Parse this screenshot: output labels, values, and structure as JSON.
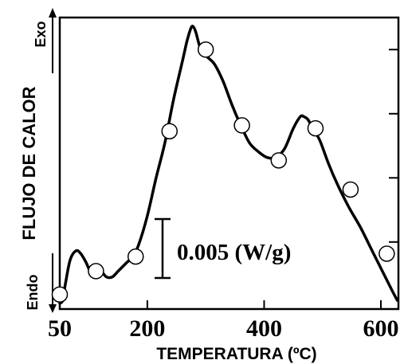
{
  "chart_data": {
    "type": "line",
    "xlabel": "TEMPERATURA (ºC)",
    "ylabel": "FLUJO DE CALOR",
    "y_arrow_top_label": "Exo",
    "y_arrow_bottom_label": "Endo",
    "x_ticks": [
      "50",
      "200",
      "400",
      "600"
    ],
    "x_tick_values": [
      50,
      200,
      400,
      600
    ],
    "xlim": [
      50,
      630
    ],
    "ylim": [
      0,
      1
    ],
    "scale_bar_label": "0.005 (W/g)",
    "y_tick_levels": [
      0.23,
      0.45,
      0.67,
      0.89
    ],
    "series": [
      {
        "x": [
          50,
          55,
          60,
          68,
          78,
          86,
          95,
          102,
          110,
          120,
          130,
          140,
          150,
          165,
          175,
          185,
          200,
          215,
          230,
          245,
          260,
          268,
          274,
          278,
          283,
          290,
          300,
          315,
          330,
          345,
          360,
          375,
          390,
          405,
          420,
          435,
          450,
          462,
          468,
          475,
          483,
          495,
          510,
          525,
          545,
          565,
          585,
          605,
          620,
          628
        ],
        "y": [
          0.02,
          0.03,
          0.09,
          0.17,
          0.2,
          0.19,
          0.16,
          0.13,
          0.12,
          0.13,
          0.11,
          0.11,
          0.13,
          0.16,
          0.18,
          0.22,
          0.32,
          0.45,
          0.57,
          0.72,
          0.85,
          0.92,
          0.96,
          0.97,
          0.95,
          0.9,
          0.87,
          0.84,
          0.78,
          0.7,
          0.63,
          0.57,
          0.54,
          0.52,
          0.52,
          0.55,
          0.62,
          0.66,
          0.66,
          0.65,
          0.62,
          0.58,
          0.5,
          0.43,
          0.35,
          0.28,
          0.2,
          0.12,
          0.06,
          0.03
        ],
        "markers_x": [
          50,
          112,
          180,
          238,
          300,
          362,
          425,
          488,
          548,
          610
        ],
        "markers_y": [
          0.05,
          0.13,
          0.18,
          0.61,
          0.89,
          0.63,
          0.51,
          0.62,
          0.41,
          0.19
        ]
      }
    ]
  }
}
